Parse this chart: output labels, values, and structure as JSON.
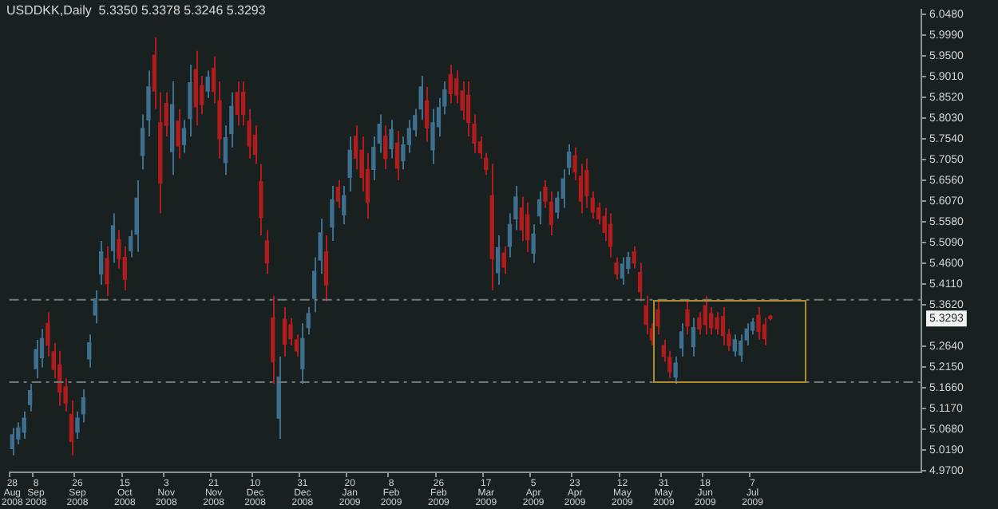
{
  "chart_data": {
    "type": "candlestick",
    "title": "USDDKK,Daily  5.3350 5.3378 5.3246 5.3293",
    "categories": [
      "28 Aug 2008",
      null,
      null,
      null,
      "8 Sep 2008",
      null,
      null,
      null,
      null,
      null,
      null,
      "26 Sep 2008",
      null,
      null,
      null,
      null,
      null,
      null,
      null,
      "15 Oct 2008",
      null,
      null,
      null,
      null,
      null,
      null,
      "3 Nov 2008",
      null,
      null,
      null,
      null,
      null,
      null,
      null,
      "21 Nov 2008",
      null,
      null,
      null,
      null,
      null,
      null,
      "10 Dec 2008",
      null,
      null,
      null,
      null,
      null,
      null,
      null,
      "31 Dec 2008",
      null,
      null,
      null,
      null,
      null,
      null,
      null,
      "20 Jan 2009",
      null,
      null,
      null,
      null,
      null,
      null,
      "8 Feb 2009",
      null,
      null,
      null,
      null,
      null,
      null,
      null,
      "26 Feb 2009",
      null,
      null,
      null,
      null,
      null,
      null,
      null,
      "17 Mar 2009",
      null,
      null,
      null,
      null,
      null,
      null,
      null,
      "5 Apr 2009",
      null,
      null,
      null,
      null,
      null,
      null,
      "23 Apr 2009",
      null,
      null,
      null,
      null,
      null,
      null,
      null,
      "12 May 2009",
      null,
      null,
      null,
      null,
      null,
      null,
      "31 May 2009",
      null,
      null,
      null,
      null,
      null,
      null,
      "18 Jun 2009",
      null,
      null,
      null,
      null,
      null,
      null,
      null,
      "7 Jul 2009",
      null,
      null,
      null,
      null,
      null,
      null,
      null,
      null,
      null,
      null,
      null,
      null,
      null,
      null,
      null,
      null,
      null,
      null,
      null,
      null,
      null,
      null,
      null,
      null,
      null,
      null,
      null,
      null
    ],
    "ohlc": [
      [
        5.022,
        5.071,
        5.006,
        5.055
      ],
      [
        5.045,
        5.084,
        5.032,
        5.071
      ],
      [
        5.061,
        5.11,
        5.045,
        5.094
      ],
      [
        5.126,
        5.175,
        5.11,
        5.159
      ],
      [
        5.211,
        5.279,
        5.188,
        5.256
      ],
      [
        5.237,
        5.305,
        5.214,
        5.282
      ],
      [
        5.318,
        5.344,
        5.24,
        5.266
      ],
      [
        5.251,
        5.272,
        5.188,
        5.209
      ],
      [
        5.22,
        5.253,
        5.123,
        5.156
      ],
      [
        5.168,
        5.188,
        5.11,
        5.13
      ],
      [
        5.103,
        5.136,
        5.006,
        5.039
      ],
      [
        5.061,
        5.11,
        5.045,
        5.094
      ],
      [
        5.104,
        5.162,
        5.084,
        5.142
      ],
      [
        5.234,
        5.292,
        5.214,
        5.272
      ],
      [
        5.338,
        5.396,
        5.318,
        5.376
      ],
      [
        5.435,
        5.513,
        5.409,
        5.487
      ],
      [
        5.471,
        5.5,
        5.383,
        5.412
      ],
      [
        5.49,
        5.578,
        5.461,
        5.549
      ],
      [
        5.516,
        5.539,
        5.448,
        5.471
      ],
      [
        5.474,
        5.5,
        5.396,
        5.422
      ],
      [
        5.49,
        5.539,
        5.474,
        5.523
      ],
      [
        5.529,
        5.656,
        5.487,
        5.614
      ],
      [
        5.715,
        5.812,
        5.682,
        5.779
      ],
      [
        5.799,
        5.916,
        5.76,
        5.877
      ],
      [
        5.952,
        5.994,
        5.825,
        5.867
      ],
      [
        5.792,
        5.864,
        5.578,
        5.65
      ],
      [
        5.838,
        5.864,
        5.76,
        5.786
      ],
      [
        5.724,
        5.89,
        5.669,
        5.835
      ],
      [
        5.796,
        5.825,
        5.708,
        5.737
      ],
      [
        5.741,
        5.799,
        5.721,
        5.779
      ],
      [
        5.802,
        5.929,
        5.76,
        5.887
      ],
      [
        5.918,
        5.962,
        5.786,
        5.83
      ],
      [
        5.88,
        5.903,
        5.812,
        5.835
      ],
      [
        5.867,
        5.916,
        5.851,
        5.9
      ],
      [
        5.921,
        5.949,
        5.838,
        5.866
      ],
      [
        5.844,
        5.89,
        5.708,
        5.754
      ],
      [
        5.698,
        5.786,
        5.669,
        5.757
      ],
      [
        5.767,
        5.864,
        5.734,
        5.831
      ],
      [
        5.864,
        5.89,
        5.786,
        5.812
      ],
      [
        5.864,
        5.89,
        5.786,
        5.812
      ],
      [
        5.796,
        5.825,
        5.708,
        5.737
      ],
      [
        5.763,
        5.786,
        5.695,
        5.718
      ],
      [
        5.653,
        5.695,
        5.526,
        5.568
      ],
      [
        5.513,
        5.539,
        5.435,
        5.461
      ],
      [
        5.331,
        5.383,
        5.175,
        5.227
      ],
      [
        5.094,
        5.24,
        5.045,
        5.191
      ],
      [
        5.328,
        5.357,
        5.24,
        5.269
      ],
      [
        5.315,
        5.331,
        5.266,
        5.282
      ],
      [
        5.279,
        5.292,
        5.24,
        5.253
      ],
      [
        5.211,
        5.318,
        5.175,
        5.282
      ],
      [
        5.308,
        5.357,
        5.292,
        5.341
      ],
      [
        5.377,
        5.474,
        5.344,
        5.441
      ],
      [
        5.468,
        5.565,
        5.435,
        5.532
      ],
      [
        5.487,
        5.526,
        5.37,
        5.409
      ],
      [
        5.546,
        5.643,
        5.513,
        5.61
      ],
      [
        5.64,
        5.656,
        5.591,
        5.607
      ],
      [
        5.575,
        5.643,
        5.552,
        5.62
      ],
      [
        5.663,
        5.76,
        5.63,
        5.727
      ],
      [
        5.76,
        5.786,
        5.682,
        5.708
      ],
      [
        5.727,
        5.76,
        5.63,
        5.663
      ],
      [
        5.682,
        5.721,
        5.565,
        5.604
      ],
      [
        5.682,
        5.76,
        5.656,
        5.734
      ],
      [
        5.744,
        5.812,
        5.721,
        5.789
      ],
      [
        5.76,
        5.786,
        5.682,
        5.708
      ],
      [
        5.731,
        5.799,
        5.708,
        5.776
      ],
      [
        5.744,
        5.773,
        5.656,
        5.685
      ],
      [
        5.702,
        5.76,
        5.682,
        5.74
      ],
      [
        5.741,
        5.799,
        5.721,
        5.779
      ],
      [
        5.776,
        5.825,
        5.76,
        5.809
      ],
      [
        5.825,
        5.903,
        5.799,
        5.877
      ],
      [
        5.844,
        5.877,
        5.747,
        5.78
      ],
      [
        5.728,
        5.825,
        5.695,
        5.792
      ],
      [
        5.783,
        5.851,
        5.76,
        5.828
      ],
      [
        5.832,
        5.89,
        5.812,
        5.87
      ],
      [
        5.906,
        5.929,
        5.838,
        5.861
      ],
      [
        5.896,
        5.916,
        5.838,
        5.858
      ],
      [
        5.867,
        5.89,
        5.799,
        5.822
      ],
      [
        5.857,
        5.89,
        5.76,
        5.793
      ],
      [
        5.789,
        5.812,
        5.721,
        5.744
      ],
      [
        5.747,
        5.76,
        5.708,
        5.721
      ],
      [
        5.708,
        5.721,
        5.669,
        5.682
      ],
      [
        5.62,
        5.695,
        5.396,
        5.471
      ],
      [
        5.438,
        5.526,
        5.409,
        5.497
      ],
      [
        5.484,
        5.5,
        5.435,
        5.451
      ],
      [
        5.5,
        5.578,
        5.474,
        5.552
      ],
      [
        5.565,
        5.643,
        5.539,
        5.617
      ],
      [
        5.591,
        5.617,
        5.513,
        5.539
      ],
      [
        5.575,
        5.604,
        5.487,
        5.516
      ],
      [
        5.484,
        5.552,
        5.461,
        5.529
      ],
      [
        5.572,
        5.63,
        5.552,
        5.61
      ],
      [
        5.64,
        5.656,
        5.591,
        5.607
      ],
      [
        5.604,
        5.63,
        5.526,
        5.552
      ],
      [
        5.581,
        5.63,
        5.565,
        5.614
      ],
      [
        5.614,
        5.682,
        5.591,
        5.659
      ],
      [
        5.687,
        5.741,
        5.669,
        5.723
      ],
      [
        5.714,
        5.734,
        5.656,
        5.676
      ],
      [
        5.666,
        5.695,
        5.578,
        5.607
      ],
      [
        5.679,
        5.708,
        5.591,
        5.62
      ],
      [
        5.614,
        5.63,
        5.565,
        5.581
      ],
      [
        5.591,
        5.604,
        5.552,
        5.565
      ],
      [
        5.571,
        5.591,
        5.513,
        5.533
      ],
      [
        5.552,
        5.578,
        5.474,
        5.5
      ],
      [
        5.461,
        5.474,
        5.422,
        5.435
      ],
      [
        5.425,
        5.474,
        5.409,
        5.458
      ],
      [
        5.448,
        5.487,
        5.435,
        5.474
      ],
      [
        5.487,
        5.5,
        5.448,
        5.461
      ],
      [
        5.438,
        5.461,
        5.37,
        5.393
      ],
      [
        5.36,
        5.383,
        5.292,
        5.315
      ],
      [
        5.305,
        5.318,
        5.266,
        5.279
      ],
      [
        5.35,
        5.37,
        5.292,
        5.312
      ],
      [
        5.266,
        5.279,
        5.227,
        5.24
      ],
      [
        5.237,
        5.253,
        5.188,
        5.204
      ],
      [
        5.191,
        5.24,
        5.175,
        5.224
      ],
      [
        5.26,
        5.318,
        5.24,
        5.298
      ],
      [
        5.35,
        5.37,
        5.292,
        5.312
      ],
      [
        5.263,
        5.331,
        5.24,
        5.308
      ],
      [
        5.331,
        5.344,
        5.292,
        5.305
      ],
      [
        5.36,
        5.383,
        5.292,
        5.315
      ],
      [
        5.341,
        5.357,
        5.292,
        5.308
      ],
      [
        5.331,
        5.344,
        5.292,
        5.305
      ],
      [
        5.334,
        5.357,
        5.266,
        5.289
      ],
      [
        5.292,
        5.305,
        5.253,
        5.266
      ],
      [
        5.253,
        5.292,
        5.24,
        5.279
      ],
      [
        5.243,
        5.292,
        5.227,
        5.276
      ],
      [
        5.279,
        5.318,
        5.266,
        5.305
      ],
      [
        5.302,
        5.331,
        5.292,
        5.321
      ],
      [
        5.337,
        5.357,
        5.279,
        5.299
      ],
      [
        5.315,
        5.331,
        5.266,
        5.282
      ],
      [
        5.335,
        5.3378,
        5.3246,
        5.3293
      ],
      null,
      null,
      null,
      null,
      null,
      null,
      null,
      null,
      null,
      null,
      null,
      null,
      null,
      null,
      null,
      null,
      null,
      null,
      null,
      null,
      null,
      null,
      null,
      null,
      null
    ],
    "colors": [
      "#3f6f8f",
      "#3f6f8f",
      "#3f6f8f",
      "#3f6f8f",
      "#3f6f8f",
      "#3f6f8f",
      "#b01c1c",
      "#b01c1c",
      "#b01c1c",
      "#b01c1c",
      "#b01c1c",
      "#3f6f8f",
      "#3f6f8f",
      "#3f6f8f",
      "#3f6f8f",
      "#3f6f8f",
      "#b01c1c",
      "#3f6f8f",
      "#b01c1c",
      "#b01c1c",
      "#3f6f8f",
      "#3f6f8f",
      "#3f6f8f",
      "#3f6f8f",
      "#b01c1c",
      "#b01c1c",
      "#b01c1c",
      "#3f6f8f",
      "#b01c1c",
      "#3f6f8f",
      "#3f6f8f",
      "#b01c1c",
      "#b01c1c",
      "#3f6f8f",
      "#b01c1c",
      "#b01c1c",
      "#3f6f8f",
      "#3f6f8f",
      "#b01c1c",
      "#b01c1c",
      "#b01c1c",
      "#b01c1c",
      "#b01c1c",
      "#b01c1c",
      "#b01c1c",
      "#3f6f8f",
      "#b01c1c",
      "#b01c1c",
      "#b01c1c",
      "#3f6f8f",
      "#3f6f8f",
      "#3f6f8f",
      "#3f6f8f",
      "#b01c1c",
      "#3f6f8f",
      "#b01c1c",
      "#3f6f8f",
      "#3f6f8f",
      "#b01c1c",
      "#b01c1c",
      "#b01c1c",
      "#3f6f8f",
      "#3f6f8f",
      "#b01c1c",
      "#3f6f8f",
      "#b01c1c",
      "#3f6f8f",
      "#3f6f8f",
      "#3f6f8f",
      "#3f6f8f",
      "#b01c1c",
      "#3f6f8f",
      "#3f6f8f",
      "#3f6f8f",
      "#b01c1c",
      "#b01c1c",
      "#b01c1c",
      "#b01c1c",
      "#b01c1c",
      "#b01c1c",
      "#b01c1c",
      "#b01c1c",
      "#3f6f8f",
      "#b01c1c",
      "#3f6f8f",
      "#3f6f8f",
      "#b01c1c",
      "#b01c1c",
      "#3f6f8f",
      "#3f6f8f",
      "#b01c1c",
      "#b01c1c",
      "#3f6f8f",
      "#3f6f8f",
      "#3f6f8f",
      "#b01c1c",
      "#b01c1c",
      "#b01c1c",
      "#b01c1c",
      "#b01c1c",
      "#b01c1c",
      "#b01c1c",
      "#b01c1c",
      "#3f6f8f",
      "#3f6f8f",
      "#b01c1c",
      "#b01c1c",
      "#b01c1c",
      "#b01c1c",
      "#b01c1c",
      "#b01c1c",
      "#b01c1c",
      "#3f6f8f",
      "#3f6f8f",
      "#b01c1c",
      "#3f6f8f",
      "#b01c1c",
      "#b01c1c",
      "#b01c1c",
      "#b01c1c",
      "#b01c1c",
      "#b01c1c",
      "#3f6f8f",
      "#3f6f8f",
      "#3f6f8f",
      "#3f6f8f",
      "#b01c1c",
      "#b01c1c",
      "#b01c1c",
      null,
      null,
      null,
      null,
      null,
      null,
      null,
      null,
      null,
      null,
      null,
      null,
      null,
      null,
      null,
      null,
      null,
      null,
      null,
      null,
      null,
      null,
      null,
      null,
      null
    ],
    "ylim": [
      4.966,
      6.059
    ],
    "yticks": [
      {
        "value": 4.97,
        "label": "4.9700"
      },
      {
        "value": 5.019,
        "label": "5.0190"
      },
      {
        "value": 5.068,
        "label": "5.0680"
      },
      {
        "value": 5.117,
        "label": "5.1170"
      },
      {
        "value": 5.166,
        "label": "5.1660"
      },
      {
        "value": 5.215,
        "label": "5.2150"
      },
      {
        "value": 5.264,
        "label": "5.2640"
      },
      {
        "value": 5.362,
        "label": "5.3620"
      },
      {
        "value": 5.411,
        "label": "5.4110"
      },
      {
        "value": 5.46,
        "label": "5.4600"
      },
      {
        "value": 5.509,
        "label": "5.5090"
      },
      {
        "value": 5.558,
        "label": "5.5580"
      },
      {
        "value": 5.607,
        "label": "5.6070"
      },
      {
        "value": 5.656,
        "label": "5.6560"
      },
      {
        "value": 5.705,
        "label": "5.7050"
      },
      {
        "value": 5.754,
        "label": "5.7540"
      },
      {
        "value": 5.803,
        "label": "5.8030"
      },
      {
        "value": 5.852,
        "label": "5.8520"
      },
      {
        "value": 5.901,
        "label": "5.9010"
      },
      {
        "value": 5.95,
        "label": "5.9500"
      },
      {
        "value": 5.999,
        "label": "5.9990"
      },
      {
        "value": 6.048,
        "label": "6.0480"
      }
    ],
    "ref_lines": [
      {
        "axis": "y",
        "value": 5.374,
        "color": "#6f7a7a",
        "line_style": "dashed"
      },
      {
        "axis": "y",
        "value": 5.179,
        "color": "#6f7a7a",
        "line_style": "dashed"
      }
    ],
    "annotations": [
      {
        "text": "5.3293",
        "y": 5.3293
      }
    ],
    "grid": false,
    "legend": false
  }
}
